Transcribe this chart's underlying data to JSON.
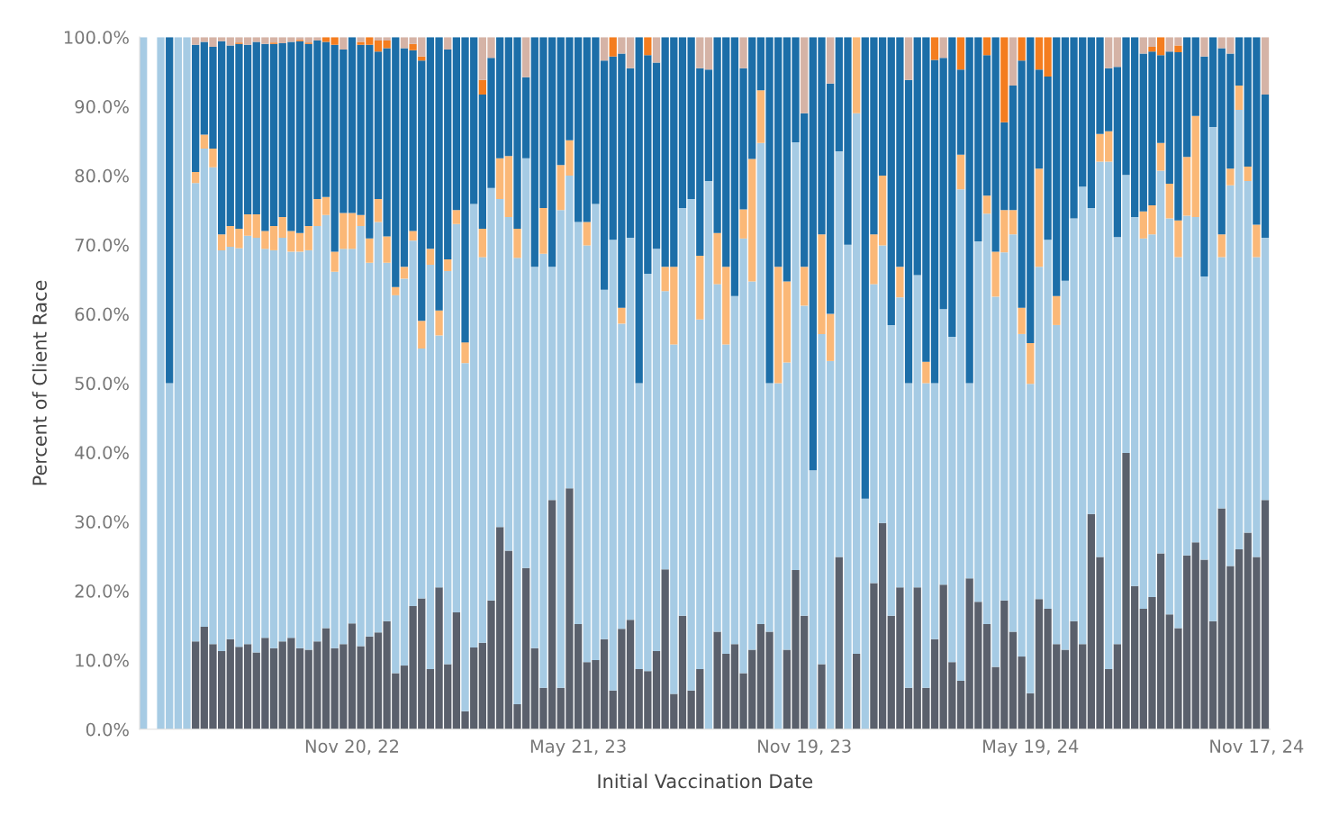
{
  "chart_data": {
    "type": "bar",
    "stacked": true,
    "xlabel": "Initial Vaccination Date",
    "ylabel": "Percent of Client Race",
    "x": [
      "2022-06-05",
      "2022-06-12",
      "2022-06-19",
      "2022-06-26",
      "2022-07-03",
      "2022-07-10",
      "2022-07-17",
      "2022-07-24",
      "2022-07-31",
      "2022-08-07",
      "2022-08-14",
      "2022-08-21",
      "2022-08-28",
      "2022-09-04",
      "2022-09-11",
      "2022-09-18",
      "2022-09-25",
      "2022-10-02",
      "2022-10-09",
      "2022-10-16",
      "2022-10-23",
      "2022-10-30",
      "2022-11-06",
      "2022-11-13",
      "2022-11-20",
      "2022-11-27",
      "2022-12-04",
      "2022-12-11",
      "2022-12-18",
      "2022-12-25",
      "2023-01-01",
      "2023-01-08",
      "2023-01-15",
      "2023-01-22",
      "2023-01-29",
      "2023-02-05",
      "2023-02-12",
      "2023-02-19",
      "2023-02-26",
      "2023-03-05",
      "2023-03-12",
      "2023-03-19",
      "2023-03-26",
      "2023-04-02",
      "2023-04-09",
      "2023-04-16",
      "2023-04-23",
      "2023-04-30",
      "2023-05-07",
      "2023-05-14",
      "2023-05-21",
      "2023-05-28",
      "2023-06-04",
      "2023-06-11",
      "2023-06-18",
      "2023-06-25",
      "2023-07-02",
      "2023-07-09",
      "2023-07-16",
      "2023-07-23",
      "2023-07-30",
      "2023-08-06",
      "2023-08-13",
      "2023-08-20",
      "2023-08-27",
      "2023-09-03",
      "2023-09-10",
      "2023-09-17",
      "2023-09-24",
      "2023-10-01",
      "2023-10-08",
      "2023-10-15",
      "2023-10-22",
      "2023-10-29",
      "2023-11-05",
      "2023-11-12",
      "2023-11-19",
      "2023-11-26",
      "2023-12-03",
      "2023-12-10",
      "2023-12-17",
      "2023-12-24",
      "2023-12-31",
      "2024-01-07",
      "2024-01-14",
      "2024-01-21",
      "2024-01-28",
      "2024-02-04",
      "2024-02-11",
      "2024-02-18",
      "2024-02-25",
      "2024-03-03",
      "2024-03-10",
      "2024-03-17",
      "2024-03-24",
      "2024-03-31",
      "2024-04-07",
      "2024-04-14",
      "2024-04-21",
      "2024-04-28",
      "2024-05-05",
      "2024-05-12",
      "2024-05-19",
      "2024-05-26",
      "2024-06-02",
      "2024-06-09",
      "2024-06-16",
      "2024-06-23",
      "2024-06-30",
      "2024-07-07",
      "2024-07-14",
      "2024-07-21",
      "2024-07-28",
      "2024-08-04",
      "2024-08-11",
      "2024-08-18",
      "2024-08-25",
      "2024-09-01",
      "2024-09-08",
      "2024-09-15",
      "2024-09-22",
      "2024-09-29",
      "2024-10-06",
      "2024-10-13",
      "2024-10-20",
      "2024-10-27",
      "2024-11-03",
      "2024-11-10",
      "2024-11-17",
      "2024-11-24"
    ],
    "xlim": [
      "2022-06-02",
      "2024-11-28"
    ],
    "xticks": [
      {
        "value": "2022-11-20",
        "label": "Nov 20, 22"
      },
      {
        "value": "2023-05-21",
        "label": "May 21, 23"
      },
      {
        "value": "2023-11-19",
        "label": "Nov 19, 23"
      },
      {
        "value": "2024-05-19",
        "label": "May 19, 24"
      },
      {
        "value": "2024-11-17",
        "label": "Nov 17, 24"
      }
    ],
    "ylim": [
      0,
      100
    ],
    "yticks": [
      {
        "value": 0,
        "label": "0.0%"
      },
      {
        "value": 10,
        "label": "10.0%"
      },
      {
        "value": 20,
        "label": "20.0%"
      },
      {
        "value": 30,
        "label": "30.0%"
      },
      {
        "value": 40,
        "label": "40.0%"
      },
      {
        "value": 50,
        "label": "50.0%"
      },
      {
        "value": 60,
        "label": "60.0%"
      },
      {
        "value": 70,
        "label": "70.0%"
      },
      {
        "value": 80,
        "label": "80.0%"
      },
      {
        "value": 90,
        "label": "90.0%"
      },
      {
        "value": 100,
        "label": "100.0%"
      }
    ],
    "series": [
      {
        "color": "#5a606c",
        "values": [
          null,
          null,
          null,
          null,
          null,
          null,
          12.7,
          14.8,
          12.3,
          11.3,
          13.0,
          11.9,
          12.3,
          11.1,
          13.2,
          11.7,
          12.7,
          13.2,
          11.7,
          11.5,
          12.7,
          14.6,
          11.7,
          12.3,
          15.3,
          12.0,
          13.4,
          14.0,
          15.6,
          8.1,
          9.2,
          17.8,
          18.9,
          8.7,
          20.5,
          9.4,
          16.9,
          2.6,
          11.8,
          12.5,
          18.6,
          29.2,
          25.8,
          3.6,
          23.3,
          11.7,
          6.0,
          33.1,
          6.0,
          34.8,
          15.2,
          9.7,
          10.0,
          13.0,
          5.6,
          14.5,
          15.8,
          8.7,
          8.4,
          11.3,
          23.1,
          5.1,
          16.4,
          5.6,
          8.7,
          null,
          14.1,
          10.9,
          12.3,
          8.1,
          11.5,
          15.2,
          14.1,
          null,
          11.5,
          23.0,
          16.4,
          null,
          9.4,
          null,
          24.9,
          null,
          10.9,
          null,
          21.1,
          29.8,
          16.4,
          20.5,
          6.0,
          20.5,
          6.0,
          13.0,
          20.9,
          9.7,
          7.0,
          21.8,
          18.4,
          15.2,
          9.0,
          18.6,
          14.1,
          10.5,
          5.2,
          18.8,
          17.4,
          12.3,
          11.5,
          15.6,
          12.3,
          31.1,
          24.9,
          8.7,
          12.3,
          39.9,
          20.7,
          17.4,
          19.1,
          25.4,
          16.6,
          14.6,
          25.1,
          27.0,
          24.5,
          15.6,
          31.9,
          23.6,
          26.0,
          28.4,
          24.9,
          33.1
        ]
      },
      {
        "color": "#a6cbe4",
        "values": [
          100,
          null,
          100,
          50,
          100,
          100,
          66.2,
          69.1,
          68.9,
          57.9,
          56.7,
          57.6,
          59.0,
          59.9,
          56.2,
          57.5,
          58.3,
          55.8,
          57.3,
          57.7,
          60.0,
          59.7,
          54.4,
          57.1,
          54.1,
          60.7,
          54.0,
          59.3,
          51.8,
          54.6,
          55.9,
          52.8,
          36.1,
          58.4,
          36.4,
          56.8,
          56.1,
          50.3,
          64.1,
          55.7,
          59.6,
          47.4,
          48.2,
          64.5,
          59.2,
          55.1,
          62.7,
          33.7,
          69.0,
          45.2,
          58.1,
          60.2,
          65.9,
          50.5,
          65.1,
          44.1,
          55.2,
          41.3,
          57.4,
          58.1,
          40.2,
          50.5,
          58.9,
          71.0,
          50.5,
          79.2,
          50.2,
          44.7,
          50.3,
          62.8,
          53.2,
          69.5,
          35.9,
          50.0,
          41.5,
          61.8,
          44.8,
          37.4,
          47.7,
          53.2,
          58.6,
          70.0,
          78.1,
          33.3,
          43.2,
          40.1,
          42.0,
          41.9,
          44.0,
          45.1,
          44.0,
          37.0,
          39.8,
          47.0,
          71.0,
          28.2,
          52.1,
          59.3,
          53.5,
          50.3,
          57.4,
          46.6,
          44.7,
          48.0,
          53.3,
          46.1,
          53.3,
          58.2,
          66.1,
          44.2,
          57.1,
          73.3,
          58.8,
          40.2,
          53.3,
          53.5,
          52.4,
          55.3,
          57.2,
          53.6,
          49.1,
          47.0,
          40.9,
          71.4,
          36.3,
          55.0,
          63.5,
          50.8,
          43.3,
          37.9
        ]
      },
      {
        "color": "#fbb877",
        "values": [
          null,
          null,
          null,
          null,
          null,
          null,
          1.6,
          2.0,
          2.7,
          2.3,
          3.0,
          2.8,
          3.1,
          3.4,
          2.6,
          3.5,
          3.0,
          3.0,
          2.7,
          3.5,
          3.9,
          2.6,
          2.9,
          5.2,
          5.2,
          1.6,
          3.5,
          3.3,
          3.8,
          1.2,
          1.7,
          1.4,
          4.0,
          2.3,
          3.6,
          1.7,
          2.0,
          3.0,
          null,
          4.1,
          null,
          5.9,
          8.8,
          4.2,
          null,
          null,
          6.6,
          null,
          6.5,
          5.1,
          null,
          3.4,
          null,
          null,
          null,
          2.3,
          null,
          null,
          null,
          null,
          3.5,
          11.2,
          null,
          null,
          9.2,
          null,
          7.4,
          11.2,
          null,
          4.2,
          17.7,
          7.6,
          null,
          16.8,
          11.7,
          null,
          5.6,
          null,
          14.4,
          6.8,
          null,
          null,
          11.0,
          null,
          7.2,
          10.1,
          null,
          4.4,
          null,
          null,
          3.1,
          null,
          null,
          null,
          5.0,
          null,
          null,
          2.6,
          6.5,
          6.1,
          3.5,
          3.8,
          5.9,
          14.2,
          null,
          4.2,
          null,
          null,
          null,
          null,
          4.0,
          4.4,
          null,
          null,
          null,
          3.9,
          4.2,
          4.0,
          5.0,
          5.3,
          8.5,
          14.6,
          null,
          null,
          3.3,
          2.4,
          3.5,
          2.1,
          4.7,
          null
        ]
      },
      {
        "color": "#1c6ea8",
        "values": [
          null,
          null,
          null,
          50,
          null,
          null,
          18.4,
          13.4,
          14.7,
          27.9,
          26.1,
          26.7,
          24.5,
          24.9,
          27.0,
          26.3,
          25.1,
          27.3,
          27.7,
          26.3,
          22.9,
          22.4,
          29.9,
          23.6,
          25.4,
          24.6,
          28.0,
          21.3,
          27.2,
          36.1,
          31.6,
          26.1,
          37.6,
          30.6,
          39.5,
          30.3,
          25.0,
          44.1,
          24.1,
          19.4,
          18.8,
          17.5,
          17.2,
          27.7,
          11.7,
          33.2,
          24.7,
          33.2,
          18.5,
          14.9,
          26.7,
          26.7,
          24.1,
          33.1,
          26.5,
          36.7,
          24.5,
          50.0,
          31.6,
          26.9,
          33.2,
          33.2,
          24.7,
          23.4,
          27.1,
          16.1,
          28.3,
          33.2,
          37.4,
          20.4,
          17.6,
          7.7,
          50.0,
          33.2,
          35.3,
          15.2,
          22.2,
          62.6,
          28.5,
          33.3,
          16.5,
          30.0,
          null,
          66.7,
          28.5,
          20.0,
          41.6,
          33.2,
          43.8,
          34.4,
          46.9,
          46.7,
          36.3,
          43.3,
          12.3,
          50.0,
          29.5,
          20.3,
          31.0,
          12.7,
          18.0,
          35.7,
          44.2,
          14.3,
          23.6,
          37.4,
          35.2,
          26.2,
          21.6,
          24.7,
          14.0,
          9.1,
          24.6,
          19.9,
          26.0,
          22.8,
          22.2,
          12.7,
          19.1,
          24.3,
          17.3,
          11.4,
          31.8,
          13.0,
          26.9,
          16.6,
          7.0,
          18.7,
          27.1,
          20.7
        ]
      },
      {
        "color": "#f47d1f",
        "values": [
          null,
          null,
          null,
          null,
          null,
          null,
          null,
          null,
          null,
          null,
          null,
          0.2,
          null,
          null,
          null,
          0.2,
          null,
          null,
          0.2,
          0.2,
          null,
          0.7,
          1.1,
          null,
          null,
          0.4,
          1.1,
          1.6,
          1.1,
          null,
          null,
          0.9,
          0.6,
          null,
          null,
          null,
          null,
          null,
          null,
          2.1,
          null,
          null,
          null,
          null,
          null,
          null,
          null,
          null,
          null,
          null,
          null,
          null,
          null,
          null,
          2.8,
          null,
          null,
          null,
          2.6,
          null,
          null,
          null,
          null,
          null,
          null,
          null,
          null,
          null,
          null,
          null,
          null,
          null,
          null,
          null,
          null,
          null,
          null,
          null,
          null,
          null,
          null,
          null,
          null,
          null,
          null,
          null,
          null,
          null,
          null,
          null,
          null,
          3.3,
          null,
          null,
          4.7,
          null,
          null,
          2.6,
          null,
          12.3,
          null,
          3.4,
          null,
          4.7,
          5.7,
          null,
          null,
          null,
          null,
          null,
          null,
          null,
          null,
          null,
          null,
          null,
          0.7,
          2.6,
          null,
          1.0,
          null,
          null,
          null,
          null,
          null,
          null,
          null,
          null,
          null,
          null
        ]
      },
      {
        "color": "#d5b3a6",
        "values": [
          null,
          null,
          null,
          null,
          null,
          null,
          1.1,
          0.7,
          1.4,
          0.6,
          1.2,
          0.8,
          1.1,
          0.7,
          1.0,
          0.8,
          0.9,
          0.7,
          0.4,
          0.8,
          0.5,
          null,
          null,
          1.8,
          null,
          0.7,
          null,
          0.5,
          0.5,
          null,
          1.6,
          1.0,
          2.8,
          null,
          null,
          1.8,
          null,
          null,
          null,
          6.2,
          3.0,
          null,
          null,
          null,
          5.8,
          null,
          null,
          null,
          null,
          null,
          null,
          null,
          null,
          3.4,
          null,
          2.4,
          4.5,
          null,
          null,
          3.7,
          null,
          null,
          null,
          null,
          4.5,
          4.7,
          null,
          null,
          null,
          4.5,
          null,
          null,
          null,
          null,
          null,
          null,
          11.0,
          null,
          null,
          6.7,
          null,
          null,
          null,
          null,
          null,
          null,
          null,
          null,
          6.2,
          null,
          null,
          null,
          3.0,
          null,
          null,
          null,
          null,
          null,
          null,
          null,
          7.0,
          null,
          null,
          null,
          null,
          null,
          null,
          null,
          null,
          null,
          null,
          4.5,
          4.3,
          null,
          null,
          2.4,
          1.4,
          null,
          2.1,
          1.2,
          null,
          null,
          2.8,
          null,
          1.6,
          2.4,
          null,
          null,
          null,
          8.3
        ]
      }
    ]
  }
}
